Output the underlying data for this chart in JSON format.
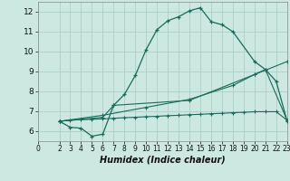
{
  "xlabel": "Humidex (Indice chaleur)",
  "bg_color": "#cce8e0",
  "grid_color": "#b0d4cc",
  "line_color": "#1a6b5a",
  "xlim": [
    0,
    23
  ],
  "ylim": [
    5.5,
    12.5
  ],
  "xticks": [
    0,
    2,
    3,
    4,
    5,
    6,
    7,
    8,
    9,
    10,
    11,
    12,
    13,
    14,
    15,
    16,
    17,
    18,
    19,
    20,
    21,
    22,
    23
  ],
  "yticks": [
    6,
    7,
    8,
    9,
    10,
    11,
    12
  ],
  "line1_x": [
    2,
    3,
    4,
    5,
    6,
    7,
    8,
    9,
    10,
    11,
    12,
    13,
    14,
    15,
    16,
    17,
    18,
    20,
    21,
    22,
    23
  ],
  "line1_y": [
    6.5,
    6.2,
    6.15,
    5.75,
    5.85,
    7.3,
    7.85,
    8.8,
    10.1,
    11.1,
    11.55,
    11.75,
    12.05,
    12.2,
    11.5,
    11.35,
    11.0,
    9.5,
    9.1,
    8.5,
    6.5
  ],
  "line2_x": [
    2,
    3,
    4,
    5,
    6,
    7,
    8,
    9,
    10,
    11,
    12,
    13,
    14,
    15,
    16,
    17,
    18,
    19,
    20,
    21,
    22,
    23
  ],
  "line2_y": [
    6.5,
    6.55,
    6.58,
    6.6,
    6.62,
    6.65,
    6.68,
    6.7,
    6.73,
    6.75,
    6.78,
    6.8,
    6.83,
    6.85,
    6.88,
    6.9,
    6.93,
    6.95,
    6.98,
    6.98,
    6.98,
    6.55
  ],
  "line3_x": [
    2,
    6,
    10,
    14,
    18,
    20,
    23
  ],
  "line3_y": [
    6.5,
    6.8,
    7.2,
    7.6,
    8.3,
    8.85,
    9.5
  ],
  "line4_x": [
    2,
    6,
    7,
    14,
    20,
    21,
    23
  ],
  "line4_y": [
    6.5,
    6.7,
    7.3,
    7.55,
    8.85,
    9.1,
    6.55
  ]
}
